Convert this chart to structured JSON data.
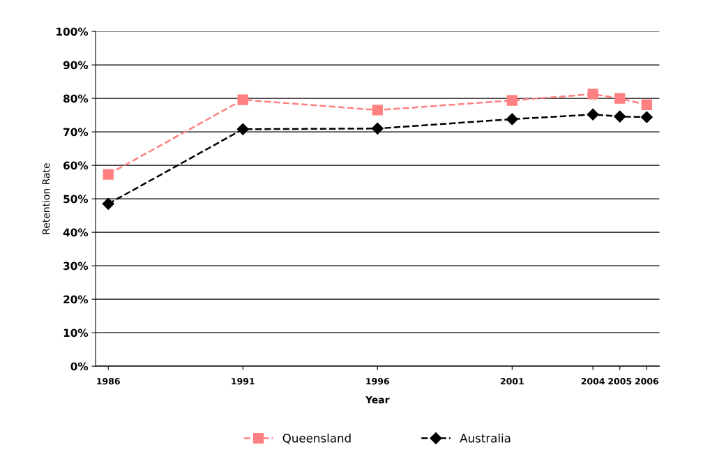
{
  "chart_data": {
    "type": "line",
    "xlabel": "Year",
    "ylabel": "Retention Rate",
    "x": [
      1986,
      1991,
      1996,
      2001,
      2004,
      2005,
      2006
    ],
    "series": [
      {
        "name": "Queensland",
        "color": "#ff8080",
        "marker": "square",
        "values": [
          57.3,
          79.6,
          76.5,
          79.4,
          81.3,
          80,
          78.1
        ]
      },
      {
        "name": "Australia",
        "color": "#000000",
        "marker": "diamond",
        "values": [
          48.5,
          70.8,
          71,
          73.8,
          75.2,
          74.6,
          74.4
        ]
      }
    ],
    "xlim": [
      1985.53,
      2006.47
    ],
    "xticks": [
      1986,
      1991,
      1996,
      2001,
      2004,
      2005,
      2006
    ],
    "ylim": [
      0,
      100
    ],
    "yticks": [
      {
        "value": 0,
        "label": "0%"
      },
      {
        "value": 10,
        "label": "10%"
      },
      {
        "value": 20,
        "label": "20%"
      },
      {
        "value": 30,
        "label": "30%"
      },
      {
        "value": 40,
        "label": "40%"
      },
      {
        "value": 50,
        "label": "50%"
      },
      {
        "value": 60,
        "label": "60%"
      },
      {
        "value": 70,
        "label": "70%"
      },
      {
        "value": 80,
        "label": "80%"
      },
      {
        "value": 90,
        "label": "90%"
      },
      {
        "value": 100,
        "label": "100%"
      }
    ],
    "grid": "y",
    "legend": "bottom",
    "line_style": "dashed"
  }
}
